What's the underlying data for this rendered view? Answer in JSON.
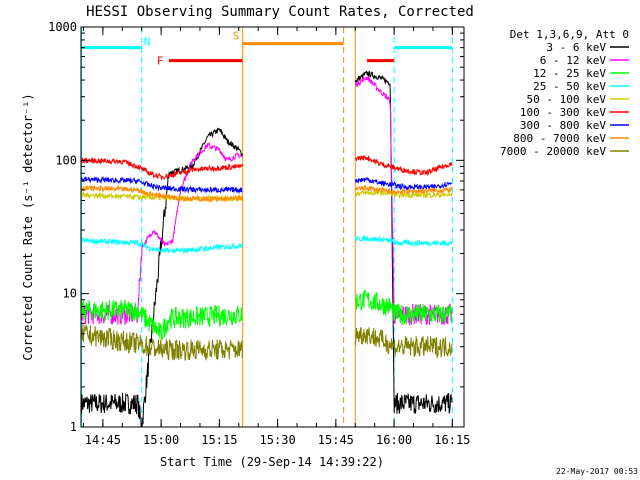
{
  "chart_data": {
    "type": "line",
    "title": "HESSI Observing Summary Count Rates, Corrected",
    "xlabel": "Start Time (29-Sep-14 14:39:22)",
    "ylabel": "Corrected Count Rate (s⁻¹ detector⁻¹)",
    "timestamp": "22-May-2017 00:53",
    "y_scale": "log",
    "ylim": [
      1,
      1000
    ],
    "xlim": [
      "14:39:22",
      "16:18"
    ],
    "x_ticks": [
      "14:45",
      "15:00",
      "15:15",
      "15:30",
      "15:45",
      "16:00",
      "16:15"
    ],
    "y_ticks": [
      "1",
      "10",
      "100",
      "1000"
    ],
    "legend_header": "Det 1,3,6,9, Att 0",
    "legend_position": "right",
    "series": [
      {
        "name": "3 - 6 keV",
        "color": "#000000",
        "points": [
          [
            "14:39:30",
            1.5
          ],
          [
            "14:54",
            1.5
          ],
          [
            "14:55",
            1
          ],
          [
            "15:02",
            80
          ],
          [
            "15:08",
            90
          ],
          [
            "15:12",
            150
          ],
          [
            "15:15",
            170
          ],
          [
            "15:17",
            140
          ],
          [
            "15:20",
            120
          ],
          [
            "15:21",
            110
          ],
          [
            "15:53",
            450
          ],
          [
            "15:56",
            420
          ],
          [
            "15:59",
            380
          ],
          [
            "16:00",
            1.5
          ],
          [
            "16:15",
            1.5
          ]
        ]
      },
      {
        "name": "6 - 12 keV",
        "color": "#ff00ff",
        "points": [
          [
            "14:39:30",
            7
          ],
          [
            "14:54",
            7
          ],
          [
            "14:55",
            22
          ],
          [
            "14:58",
            30
          ],
          [
            "15:01",
            23
          ],
          [
            "15:03",
            25
          ],
          [
            "15:05",
            60
          ],
          [
            "15:08",
            100
          ],
          [
            "15:12",
            130
          ],
          [
            "15:15",
            120
          ],
          [
            "15:17",
            100
          ],
          [
            "15:20",
            110
          ],
          [
            "15:21",
            105
          ],
          [
            "15:53",
            420
          ],
          [
            "15:56",
            340
          ],
          [
            "15:59",
            280
          ],
          [
            "16:00",
            7
          ],
          [
            "16:15",
            7
          ]
        ]
      },
      {
        "name": "12 - 25 keV",
        "color": "#00ff00",
        "points": [
          [
            "14:39:30",
            7.5
          ],
          [
            "14:54",
            7.5
          ],
          [
            "14:57",
            6
          ],
          [
            "15:00",
            5
          ],
          [
            "15:02",
            6.5
          ],
          [
            "15:21",
            7
          ],
          [
            "15:53",
            9
          ],
          [
            "15:59",
            8
          ],
          [
            "16:00",
            7
          ],
          [
            "16:15",
            7
          ]
        ]
      },
      {
        "name": "25 - 50 keV",
        "color": "#00ffff",
        "points": [
          [
            "14:39:30",
            25
          ],
          [
            "14:54",
            24
          ],
          [
            "14:57",
            22
          ],
          [
            "15:00",
            21
          ],
          [
            "15:05",
            21
          ],
          [
            "15:21",
            23
          ],
          [
            "15:53",
            26
          ],
          [
            "15:59",
            25
          ],
          [
            "16:00",
            24
          ],
          [
            "16:15",
            24
          ]
        ]
      },
      {
        "name": "50 - 100 keV",
        "color": "#cccc00",
        "points": [
          [
            "14:39:30",
            55
          ],
          [
            "14:54",
            53
          ],
          [
            "15:05",
            52
          ],
          [
            "15:21",
            52
          ],
          [
            "15:53",
            57
          ],
          [
            "15:59",
            57
          ],
          [
            "16:00",
            55
          ],
          [
            "16:15",
            55
          ]
        ]
      },
      {
        "name": "100 - 300 keV",
        "color": "#ff0000",
        "points": [
          [
            "14:39:30",
            100
          ],
          [
            "14:50",
            98
          ],
          [
            "14:54",
            90
          ],
          [
            "14:57",
            80
          ],
          [
            "15:00",
            75
          ],
          [
            "15:03",
            78
          ],
          [
            "15:08",
            85
          ],
          [
            "15:15",
            88
          ],
          [
            "15:21",
            90
          ],
          [
            "15:53",
            105
          ],
          [
            "15:56",
            95
          ],
          [
            "15:59",
            90
          ],
          [
            "16:02",
            85
          ],
          [
            "16:08",
            80
          ],
          [
            "16:15",
            95
          ]
        ]
      },
      {
        "name": "300 - 800 keV",
        "color": "#0000ff",
        "points": [
          [
            "14:39:30",
            72
          ],
          [
            "14:54",
            70
          ],
          [
            "14:57",
            65
          ],
          [
            "15:00",
            62
          ],
          [
            "15:10",
            60
          ],
          [
            "15:21",
            60
          ],
          [
            "15:53",
            72
          ],
          [
            "15:56",
            68
          ],
          [
            "15:59",
            66
          ],
          [
            "16:03",
            63
          ],
          [
            "16:10",
            63
          ],
          [
            "16:15",
            68
          ]
        ]
      },
      {
        "name": "800 - 7000 keV",
        "color": "#ff8c00",
        "points": [
          [
            "14:39:30",
            62
          ],
          [
            "14:54",
            60
          ],
          [
            "14:57",
            56
          ],
          [
            "15:05",
            52
          ],
          [
            "15:15",
            51
          ],
          [
            "15:21",
            52
          ],
          [
            "15:53",
            62
          ],
          [
            "15:56",
            60
          ],
          [
            "16:00",
            58
          ],
          [
            "16:15",
            60
          ]
        ]
      },
      {
        "name": "7000 - 20000 keV",
        "color": "#808000",
        "points": [
          [
            "14:39:30",
            5
          ],
          [
            "14:54",
            4.2
          ],
          [
            "15:00",
            3.8
          ],
          [
            "15:21",
            3.8
          ],
          [
            "15:53",
            5
          ],
          [
            "15:59",
            4.2
          ],
          [
            "16:00",
            4
          ],
          [
            "16:15",
            4
          ]
        ]
      }
    ],
    "annotations": [
      {
        "label": "N",
        "color": "#00ffff",
        "segments": [
          [
            "14:39:30",
            "14:55"
          ],
          [
            "16:00",
            "16:15"
          ]
        ],
        "y": 700,
        "dashed_bounds": [
          "14:55",
          "16:00",
          "16:15"
        ]
      },
      {
        "label": "F",
        "color": "#ff0000",
        "segments": [
          [
            "15:02",
            "15:21"
          ],
          [
            "15:53",
            "16:00"
          ]
        ],
        "y": 560
      },
      {
        "label": "S",
        "color": "#ff8c00",
        "segments": [
          [
            "15:21",
            "15:47"
          ]
        ],
        "y": 750,
        "dashed_bounds": [
          "15:47"
        ],
        "solid_bounds": [
          "15:21",
          "15:50"
        ]
      }
    ],
    "gaps": [
      [
        "15:21",
        "15:50"
      ]
    ]
  }
}
